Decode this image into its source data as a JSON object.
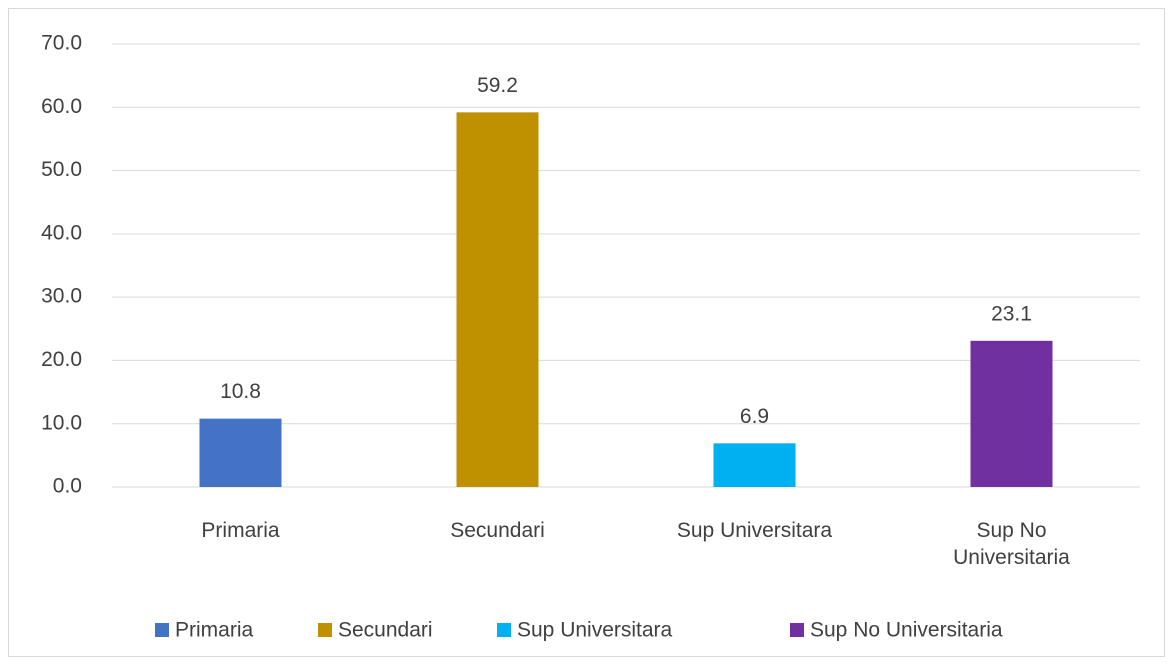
{
  "chart_data": {
    "type": "bar",
    "categories": [
      "Primaria",
      "Secundari",
      "Sup Universitara",
      "Sup No Universitaria"
    ],
    "values": [
      10.8,
      59.2,
      6.9,
      23.1
    ],
    "colors": [
      "#4472c4",
      "#bf9000",
      "#00b0f0",
      "#7030a0"
    ],
    "ylim": [
      0,
      70
    ],
    "yticks": [
      {
        "value": 0,
        "label": "0.0"
      },
      {
        "value": 10,
        "label": "10.0"
      },
      {
        "value": 20,
        "label": "20.0"
      },
      {
        "value": 30,
        "label": "30.0"
      },
      {
        "value": 40,
        "label": "40.0"
      },
      {
        "value": 50,
        "label": "50.0"
      },
      {
        "value": 60,
        "label": "60.0"
      },
      {
        "value": 70,
        "label": "70.0"
      }
    ],
    "grid": true,
    "legend": "bottom"
  }
}
